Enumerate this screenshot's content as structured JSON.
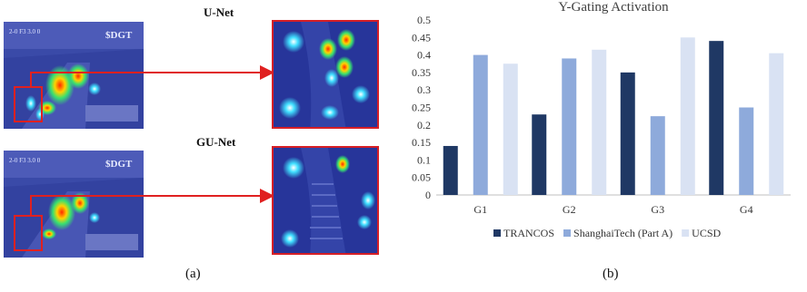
{
  "panels": {
    "a": {
      "label": "(a)",
      "top_title": "U-Net",
      "bottom_title": "GU-Net",
      "frame_text": "$DGT",
      "frame_code": "2-0 F3 3.0 0"
    },
    "b": {
      "label": "(b)"
    }
  },
  "colors": {
    "TRANCOS": "#1f3864",
    "ShanghaiTech (Part A)": "#8eaadb",
    "UCSD": "#d9e2f3",
    "highlight": "#e02020"
  },
  "chart_data": {
    "type": "bar",
    "title": "Y-Gating Activation",
    "categories": [
      "G1",
      "G2",
      "G3",
      "G4"
    ],
    "series": [
      {
        "name": "TRANCOS",
        "values": [
          0.14,
          0.23,
          0.35,
          0.44
        ]
      },
      {
        "name": "ShanghaiTech (Part A)",
        "values": [
          0.4,
          0.39,
          0.225,
          0.25
        ]
      },
      {
        "name": "UCSD",
        "values": [
          0.375,
          0.415,
          0.45,
          0.405
        ]
      }
    ],
    "ylim": [
      0,
      0.5
    ],
    "yticks": [
      "0",
      "0.05",
      "0.1",
      "0.15",
      "0.2",
      "0.25",
      "0.3",
      "0.35",
      "0.4",
      "0.45",
      "0.5"
    ],
    "grid": false,
    "legend": "bottom"
  }
}
